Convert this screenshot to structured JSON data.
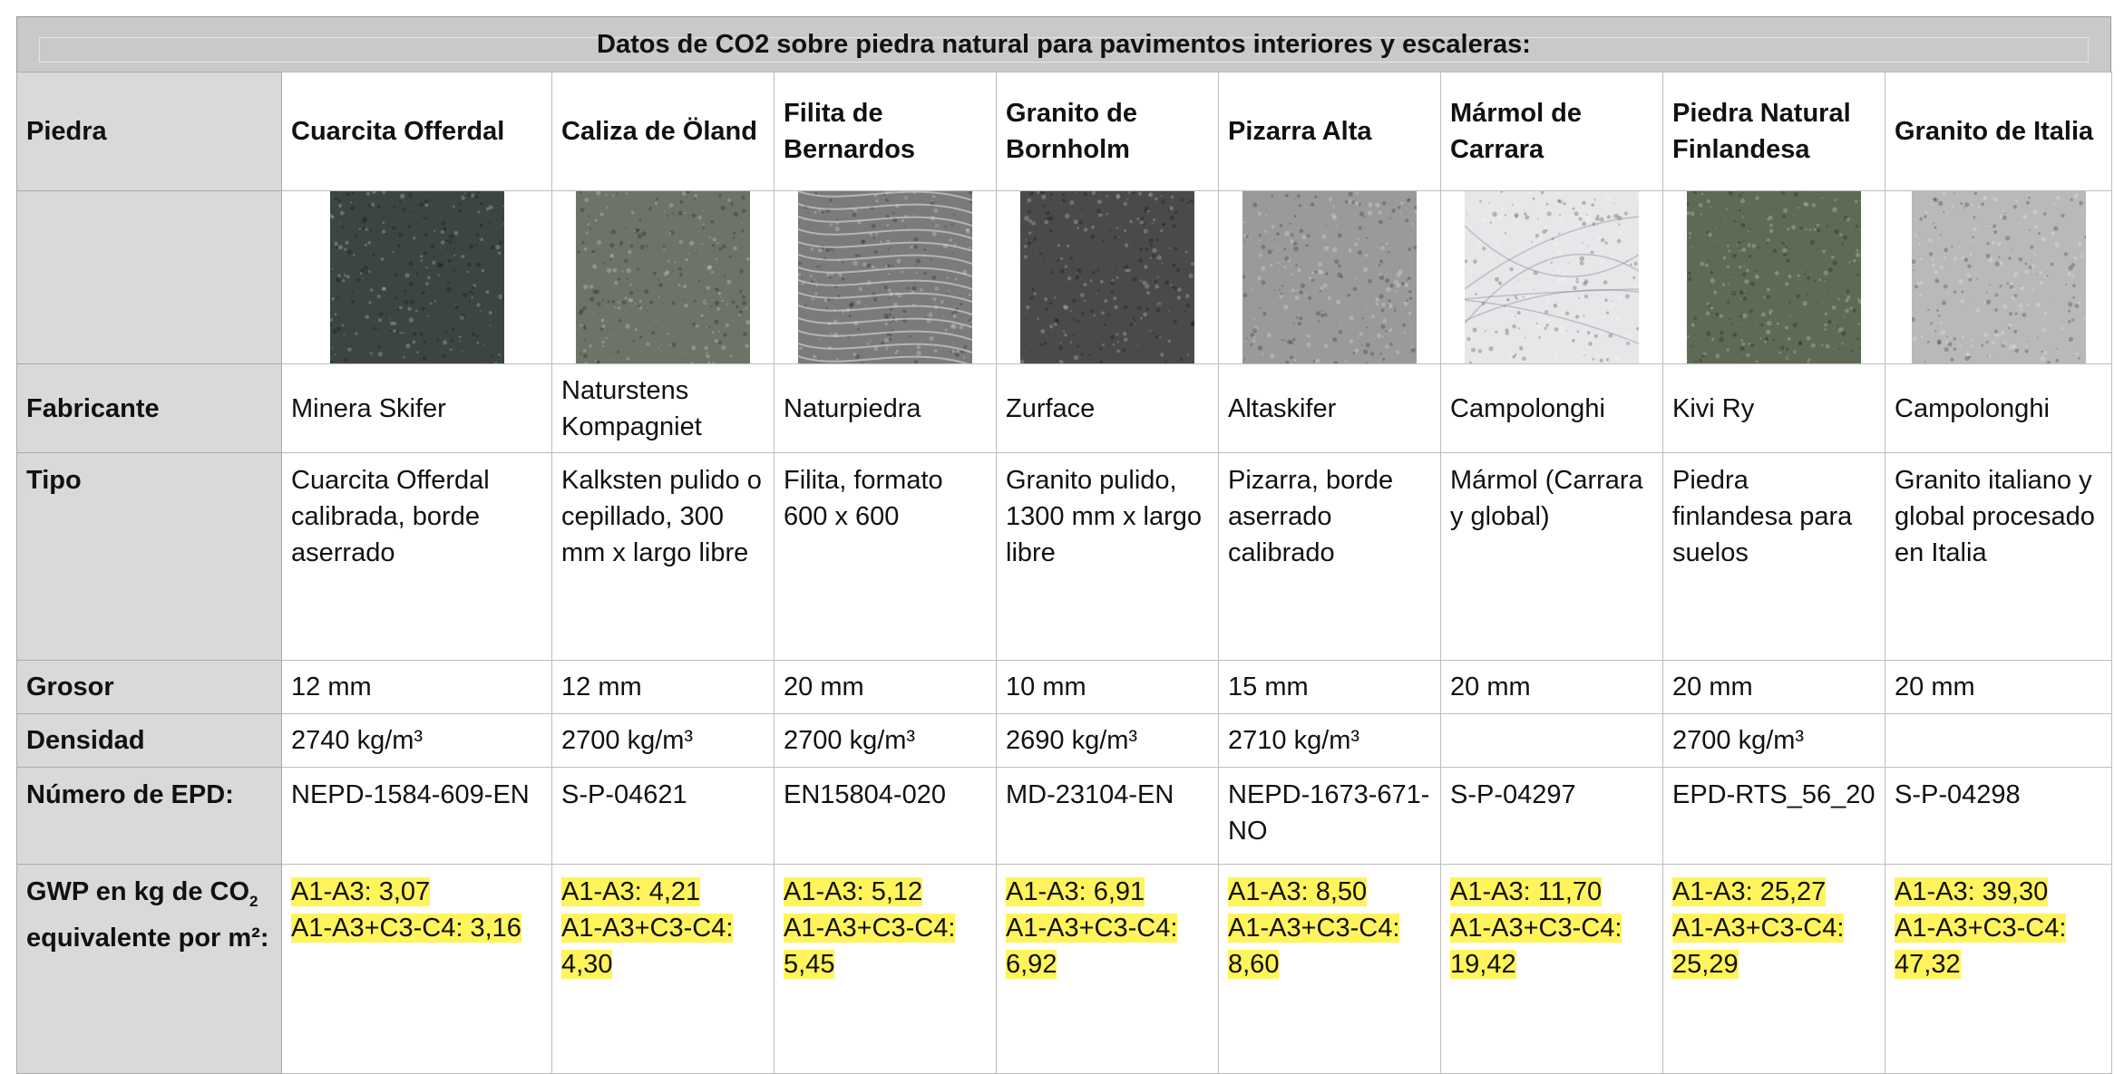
{
  "title": "Datos de CO2 sobre piedra natural para pavimentos interiores y escaleras:",
  "labels": {
    "piedra": "Piedra",
    "fabricante": "Fabricante",
    "tipo": "Tipo",
    "grosor": "Grosor",
    "densidad": "Densidad",
    "epd": "Número de EPD:",
    "gwp_a": "GWP en kg de CO",
    "gwp_sub": "2",
    "gwp_b": "equivalente por m²:"
  },
  "stones": [
    {
      "name": "Cuarcita Offerdal",
      "fabricante": "Minera Skifer",
      "tipo": "Cuarcita Offerdal calibrada, borde aserrado",
      "grosor": "12 mm",
      "densidad": "2740 kg/m³",
      "epd": "NEPD-1584-609-EN",
      "gwp1": "A1-A3: 3,07",
      "gwp2": "A1-A3+C3-C4: 3,16",
      "swatch_icon": "dark-green-quartzite-texture",
      "color": "#3c4540"
    },
    {
      "name": "Caliza de Öland",
      "fabricante": "Naturstens Kompagniet",
      "tipo": "Kalksten pulido o cepillado, 300 mm x largo libre",
      "grosor": "12 mm",
      "densidad": "2700 kg/m³",
      "epd": "S-P-04621",
      "gwp1": "A1-A3: 4,21",
      "gwp2": "A1-A3+C3-C4: 4,30",
      "swatch_icon": "grey-green-limestone-texture",
      "color": "#6c7468"
    },
    {
      "name": "Filita de Bernardos",
      "fabricante": "Naturpiedra",
      "tipo": "Filita, formato 600 x 600",
      "grosor": "20 mm",
      "densidad": "2700 kg/m³",
      "epd": "EN15804-020",
      "gwp1": "A1-A3: 5,12",
      "gwp2": "A1-A3+C3-C4: 5,45",
      "swatch_icon": "grey-phyllite-texture",
      "color": "#7b7b7b"
    },
    {
      "name": "Granito de Bornholm",
      "fabricante": "Zurface",
      "tipo": "Granito pulido, 1300 mm x largo libre",
      "grosor": "10 mm",
      "densidad": "2690 kg/m³",
      "epd": "MD-23104-EN",
      "gwp1": "A1-A3: 6,91",
      "gwp2": "A1-A3+C3-C4: 6,92",
      "swatch_icon": "dark-granite-texture",
      "color": "#4a4a4a"
    },
    {
      "name": "Pizarra Alta",
      "fabricante": "Altaskifer",
      "tipo": "Pizarra, borde aserrado calibrado",
      "grosor": "15 mm",
      "densidad": "2710 kg/m³",
      "epd": "NEPD-1673-671-NO",
      "gwp1": "A1-A3: 8,50",
      "gwp2": "A1-A3+C3-C4: 8,60",
      "swatch_icon": "light-grey-slate-texture",
      "color": "#9a9a9a"
    },
    {
      "name": "Mármol de Carrara",
      "fabricante": "Campolonghi",
      "tipo": "Mármol (Carrara y global)",
      "grosor": "20 mm",
      "densidad": "",
      "epd": "S-P-04297",
      "gwp1": "A1-A3: 11,70",
      "gwp2": "A1-A3+C3-C4: 19,42",
      "swatch_icon": "white-marble-texture",
      "color": "#e6e7e8"
    },
    {
      "name": "Piedra Natural Finlandesa",
      "fabricante": "Kivi Ry",
      "tipo": "Piedra finlandesa para suelos",
      "grosor": "20 mm",
      "densidad": "2700 kg/m³",
      "epd": "EPD-RTS_56_20",
      "gwp1": "A1-A3: 25,27",
      "gwp2": "A1-A3+C3-C4: 25,29",
      "swatch_icon": "green-finnish-stone-texture",
      "color": "#5f6a55"
    },
    {
      "name": "Granito de Italia",
      "fabricante": "Campolonghi",
      "tipo": "Granito italiano y global procesado en Italia",
      "grosor": "20 mm",
      "densidad": "",
      "epd": "S-P-04298",
      "gwp1": "A1-A3: 39,30",
      "gwp2": "A1-A3+C3-C4: 47,32",
      "swatch_icon": "light-speckled-granite-texture",
      "color": "#b9b9b9"
    }
  ],
  "highlight_color": "#fff45c"
}
